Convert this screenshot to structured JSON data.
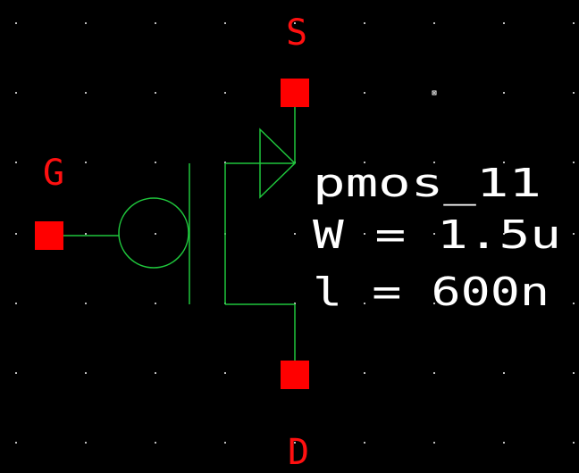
{
  "colors": {
    "background": "#000000",
    "wire": "#1fc63c",
    "pin": "#ff0000",
    "pin_label": "#ff1010",
    "text": "#ffffff",
    "grid_dot": "#bdbdbd"
  },
  "pins": {
    "source": "S",
    "gate": "G",
    "drain": "D"
  },
  "instance": {
    "name": "pmos_11",
    "width": "W = 1.5u",
    "length": "l = 600n"
  }
}
